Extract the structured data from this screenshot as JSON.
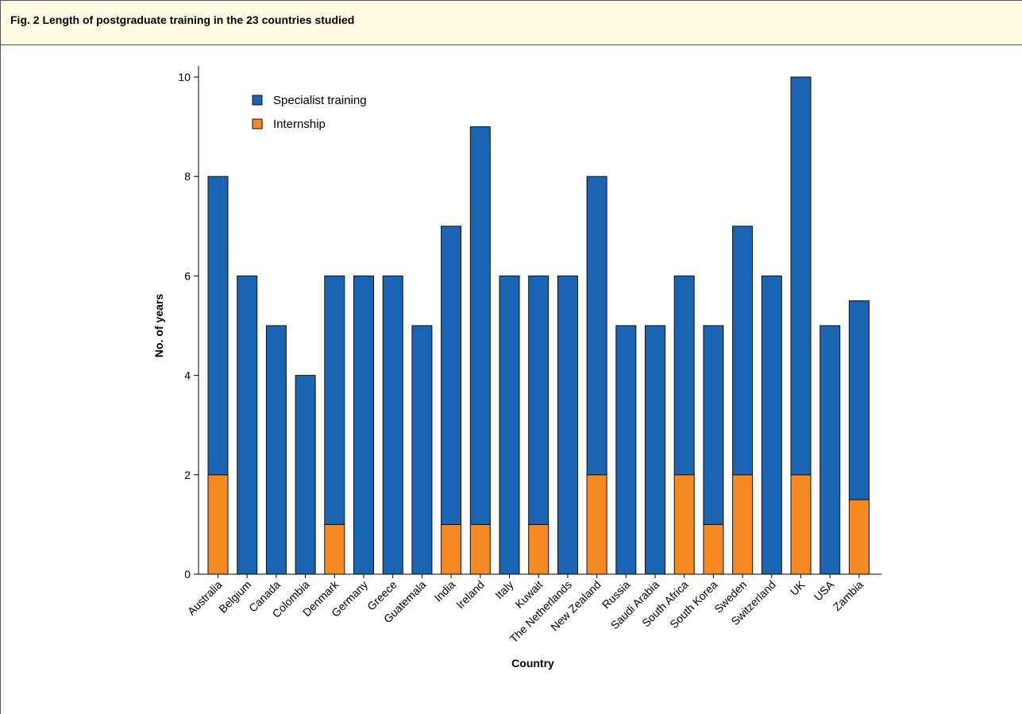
{
  "figure": {
    "title": "Fig. 2 Length of postgraduate training in the 23 countries studied"
  },
  "colors": {
    "specialist": "#1b64b4",
    "internship": "#f58a25",
    "header_bg": "#fefbe0"
  },
  "chart_data": {
    "type": "bar",
    "stacked": true,
    "title": "",
    "xlabel": "Country",
    "ylabel": "No. of years",
    "ylim": [
      0,
      10
    ],
    "yticks": [
      0,
      2,
      4,
      6,
      8,
      10
    ],
    "legend_position": "top-left",
    "categories": [
      "Australia",
      "Belgium",
      "Canada",
      "Colombia",
      "Denmark",
      "Germany",
      "Greece",
      "Guatemala",
      "India",
      "Ireland",
      "Italy",
      "Kuwait",
      "The Netherlands",
      "New Zealand",
      "Russia",
      "Saudi Arabia",
      "South Africa",
      "South Korea",
      "Sweden",
      "Switzerland",
      "UK",
      "USA",
      "Zambia"
    ],
    "series": [
      {
        "name": "Internship",
        "color": "#f58a25",
        "values": [
          2,
          0,
          0,
          0,
          1,
          0,
          0,
          0,
          1,
          1,
          0,
          1,
          0,
          2,
          0,
          0,
          2,
          1,
          2,
          0,
          2,
          0,
          1.5
        ]
      },
      {
        "name": "Specialist training",
        "color": "#1b64b4",
        "values": [
          6,
          6,
          5,
          4,
          5,
          6,
          6,
          5,
          6,
          8,
          6,
          5,
          6,
          6,
          5,
          5,
          4,
          4,
          5,
          6,
          8,
          5,
          4
        ]
      }
    ],
    "legend": [
      {
        "name": "Specialist training",
        "color": "#1b64b4"
      },
      {
        "name": "Internship",
        "color": "#f58a25"
      }
    ]
  }
}
